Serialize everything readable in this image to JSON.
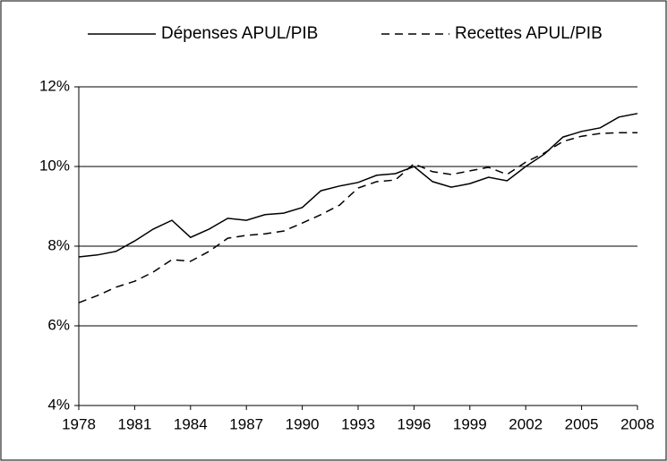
{
  "chart_data": {
    "type": "line",
    "x": [
      1978,
      1979,
      1980,
      1981,
      1982,
      1983,
      1984,
      1985,
      1986,
      1987,
      1988,
      1989,
      1990,
      1991,
      1992,
      1993,
      1994,
      1995,
      1996,
      1997,
      1998,
      1999,
      2000,
      2001,
      2002,
      2003,
      2004,
      2005,
      2006,
      2007,
      2008
    ],
    "series": [
      {
        "name": "Dépenses APUL/PIB",
        "color": "#000000",
        "style": "solid",
        "values": [
          7.73,
          7.78,
          7.87,
          8.13,
          8.43,
          8.65,
          8.22,
          8.43,
          8.7,
          8.65,
          8.79,
          8.83,
          8.97,
          9.39,
          9.51,
          9.6,
          9.78,
          9.82,
          10.0,
          9.62,
          9.48,
          9.57,
          9.73,
          9.64,
          10.0,
          10.31,
          10.74,
          10.88,
          10.97,
          11.24,
          11.33
        ]
      },
      {
        "name": "Recettes APUL/PIB",
        "color": "#000000",
        "style": "dashed",
        "values": [
          6.58,
          6.76,
          6.97,
          7.12,
          7.35,
          7.66,
          7.62,
          7.87,
          8.2,
          8.27,
          8.31,
          8.38,
          8.58,
          8.79,
          9.03,
          9.46,
          9.62,
          9.66,
          10.07,
          9.87,
          9.8,
          9.89,
          9.98,
          9.8,
          10.11,
          10.34,
          10.63,
          10.76,
          10.83,
          10.85,
          10.85
        ]
      }
    ],
    "xlim": [
      1978,
      2008
    ],
    "xticks": [
      1978,
      1981,
      1984,
      1987,
      1990,
      1993,
      1996,
      1999,
      2002,
      2005,
      2008
    ],
    "ylim": [
      4,
      12
    ],
    "yticks": [
      {
        "value": 4,
        "label": "4%"
      },
      {
        "value": 6,
        "label": "6%"
      },
      {
        "value": 8,
        "label": "8%"
      },
      {
        "value": 10,
        "label": "10%"
      },
      {
        "value": 12,
        "label": "12%"
      }
    ],
    "grid": true,
    "legend": "top"
  }
}
